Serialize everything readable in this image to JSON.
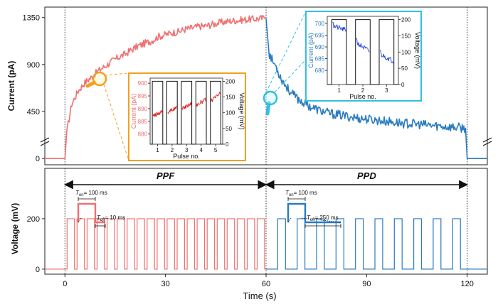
{
  "chart_data": [
    {
      "type": "line",
      "panel": "top",
      "ylabel": "Current (pA)",
      "yticks": [
        0,
        450,
        900,
        1350
      ],
      "ylim": [
        -60,
        1450
      ],
      "axis_break": true,
      "series": [
        {
          "color": "#f07070",
          "phase": "PPF",
          "x": [
            0,
            0.5,
            2,
            4,
            6,
            8,
            10,
            12,
            14,
            16,
            18,
            20,
            22,
            24,
            26,
            28,
            30,
            32,
            34,
            36,
            38,
            40,
            42,
            44,
            46,
            48,
            50,
            52,
            54,
            56,
            58,
            60
          ],
          "y": [
            0,
            240,
            520,
            650,
            730,
            780,
            840,
            885,
            930,
            970,
            1000,
            1045,
            1080,
            1105,
            1130,
            1170,
            1185,
            1205,
            1215,
            1240,
            1250,
            1265,
            1270,
            1285,
            1300,
            1310,
            1320,
            1325,
            1330,
            1335,
            1340,
            1345
          ]
        },
        {
          "color": "#2a7bc0",
          "phase": "PPD",
          "x": [
            60,
            60.5,
            61,
            62,
            63,
            64,
            66,
            68,
            70,
            72,
            74,
            76,
            78,
            80,
            84,
            88,
            92,
            96,
            100,
            104,
            108,
            112,
            116,
            119.5,
            120
          ],
          "y": [
            1340,
            1150,
            1000,
            930,
            880,
            800,
            690,
            610,
            560,
            520,
            485,
            460,
            440,
            425,
            405,
            385,
            370,
            355,
            340,
            330,
            320,
            310,
            300,
            290,
            0
          ]
        }
      ],
      "insets": [
        {
          "id": "ppf-inset",
          "ylabel": "Current (pA)",
          "ylabel2": "Voltage (mV)",
          "xlabel": "Pulse no.",
          "xticks": [
            "1",
            "2",
            "3",
            "4",
            "5"
          ],
          "yticks": [
            "880",
            "885",
            "890",
            "895",
            "900"
          ],
          "ylim": [
            876,
            902
          ],
          "yticks2": [
            "0",
            "50",
            "100",
            "150",
            "200"
          ],
          "y2lim": [
            0,
            210
          ],
          "pulses": 5,
          "pulse_level_mV": 200,
          "line_color": "#e02020",
          "current_segments": [
            [
              887,
              889
            ],
            [
              888.5,
              890.5
            ],
            [
              890,
              892
            ],
            [
              891.5,
              893.5
            ],
            [
              893,
              896
            ]
          ]
        },
        {
          "id": "ppd-inset",
          "ylabel": "Current (pA)",
          "ylabel2": "Voltage (mV)",
          "xlabel": "Pulse no.",
          "xticks": [
            "1",
            "2",
            "3"
          ],
          "yticks": [
            "680",
            "685",
            "690",
            "695",
            "700"
          ],
          "ylim": [
            674,
            703
          ],
          "yticks2": [
            "0",
            "50",
            "100",
            "150",
            "200"
          ],
          "y2lim": [
            0,
            210
          ],
          "pulses": 3,
          "pulse_level_mV": 200,
          "line_color": "#1a3fe0",
          "current_segments": [
            [
              699,
              697
            ],
            [
              692,
              688
            ],
            [
              687,
              684
            ]
          ]
        }
      ]
    },
    {
      "type": "line",
      "panel": "bottom",
      "xlabel": "Time (s)",
      "ylabel": "Voltage (mV)",
      "xticks": [
        0,
        30,
        60,
        90,
        120
      ],
      "xlim": [
        -6,
        126
      ],
      "yticks": [
        0,
        200
      ],
      "ylim": [
        -20,
        400
      ],
      "phases": [
        {
          "label": "PPF",
          "from": 0,
          "to": 60,
          "color": "#f07070",
          "pulse_count": 20,
          "pulse_amplitude_mV": 200,
          "t_on": "= 100 ms",
          "t_off": "= 10 ms"
        },
        {
          "label": "PPD",
          "from": 60,
          "to": 120,
          "color": "#2a7bc0",
          "pulse_count": 10,
          "pulse_amplitude_mV": 200,
          "t_on": "= 100 ms",
          "t_off": "= 250 ms"
        }
      ]
    }
  ]
}
